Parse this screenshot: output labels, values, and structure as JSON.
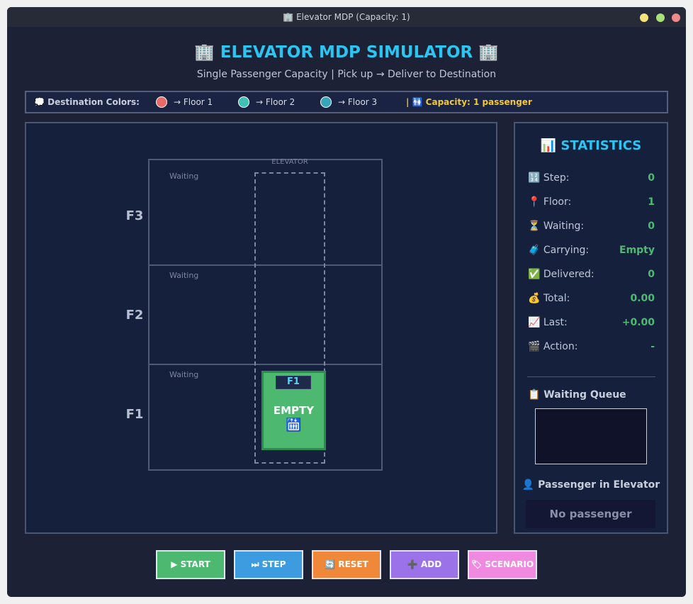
{
  "window": {
    "title": "🏢 Elevator MDP (Capacity: 1)"
  },
  "header": {
    "title": "🏢 ELEVATOR MDP SIMULATOR 🏢",
    "subtitle": "Single Passenger Capacity | Pick up → Deliver to Destination"
  },
  "legend": {
    "label": "💭 Destination Colors:",
    "items": [
      "→ Floor 1",
      "→ Floor 2",
      "→ Floor 3"
    ],
    "capacity": "| 🚻 Capacity: 1 passenger"
  },
  "building": {
    "floors": [
      "F3",
      "F2",
      "F1"
    ],
    "waiting": [
      "Waiting",
      "Waiting",
      "Waiting"
    ],
    "shaft": "ELEVATOR",
    "car_floor": "F1",
    "car_status": "EMPTY",
    "car_icon": "🛗"
  },
  "stats": {
    "title": "📊 STATISTICS",
    "rows": [
      [
        "🔢 Step:",
        "0"
      ],
      [
        "📍 Floor:",
        "1"
      ],
      [
        "⏳ Waiting:",
        "0"
      ],
      [
        "🧳 Carrying:",
        "Empty"
      ],
      [
        "✅ Delivered:",
        "0"
      ],
      [
        "💰 Total:",
        "0.00"
      ],
      [
        "📈 Last:",
        "+0.00"
      ],
      [
        "🎬 Action:",
        "-"
      ]
    ],
    "queue_title": "📋 Waiting Queue",
    "passenger_title": "👤 Passenger in Elevator",
    "passenger": "No passenger"
  },
  "buttons": [
    "▶ START",
    "⏭ STEP",
    "🔄 RESET",
    "➕ ADD",
    "🏷 SCENARIO"
  ]
}
